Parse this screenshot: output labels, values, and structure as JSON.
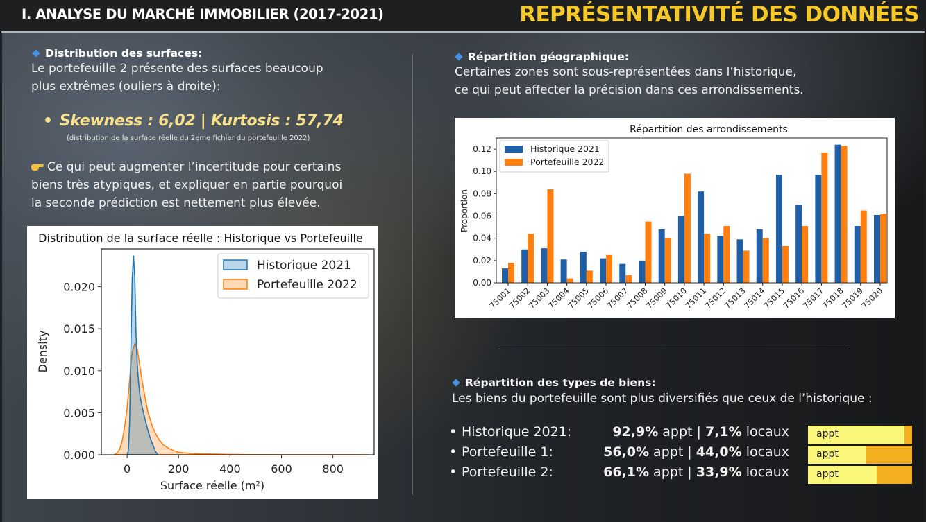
{
  "header": {
    "section_title": "I. ANALYSE DU MARCHÉ IMMOBILIER (2017-2021)",
    "main_title": "REPRÉSENTATIVITÉ DES DONNÉES"
  },
  "surfaces": {
    "heading": "Distribution des surfaces:",
    "text_line1": "Le portefeuille 2 présente des surfaces beaucoup",
    "text_line2": "plus extrêmes (ouliers à droite):",
    "metrics_bullet": "•",
    "metrics": "Skewness : 6,02 | Kurtosis : 57,74",
    "metrics_note": "(distribution de la surface réelle du 2eme fichier du portefeuille 2022)",
    "note_line1": "Ce qui peut augmenter l’incertitude pour certains",
    "note_line2": "biens très atypiques, et expliquer en partie pourquoi",
    "note_line3": "la seconde prédiction est nettement plus élevée."
  },
  "geo": {
    "heading": "Répartition géographique:",
    "text_line1": "Certaines zones sont sous-représentées dans l’historique,",
    "text_line2": "ce qui peut affecter la précision dans ces arrondissements."
  },
  "types": {
    "heading": "Répartition des types de biens:",
    "text": "Les biens du portefeuille sont plus diversifiés que ceux de l’historique :",
    "rows": [
      {
        "label": "Historique 2021:",
        "appt_pct": "92,9%",
        "appt_word": " appt | ",
        "locaux_pct": "7,1%",
        "locaux_word": " locaux",
        "appt_share": 92.9,
        "bar_label": "appt"
      },
      {
        "label": "Portefeuille 1:",
        "appt_pct": "56,0%",
        "appt_word": " appt | ",
        "locaux_pct": "44,0%",
        "locaux_word": " locaux",
        "appt_share": 56.0,
        "bar_label": "appt"
      },
      {
        "label": "Portefeuille 2:",
        "appt_pct": "66,1%",
        "appt_word": " appt | ",
        "locaux_pct": "33,9%",
        "locaux_word": " locaux",
        "appt_share": 66.1,
        "bar_label": "appt"
      }
    ],
    "colors": {
      "appt": "#fbf77b",
      "locaux": "#f5b021"
    }
  },
  "chart_data": [
    {
      "type": "area",
      "title": "Distribution de la surface réelle : Historique vs Portefeuille",
      "xlabel": "Surface réelle (m²)",
      "ylabel": "Density",
      "xlim": [
        -100,
        960
      ],
      "ylim": [
        0,
        0.0245
      ],
      "xticks": [
        0,
        200,
        400,
        600,
        800
      ],
      "yticks": [
        "0.000",
        "0.005",
        "0.010",
        "0.015",
        "0.020"
      ],
      "ytick_values": [
        0,
        0.005,
        0.01,
        0.015,
        0.02
      ],
      "legend": "top-right",
      "series": [
        {
          "name": "Historique 2021",
          "color": "#1f77b4",
          "x": [
            0,
            5,
            10,
            15,
            20,
            25,
            30,
            35,
            40,
            45,
            50,
            60,
            70,
            80,
            90,
            100,
            110,
            120
          ],
          "y": [
            0,
            0.0005,
            0.004,
            0.013,
            0.021,
            0.0237,
            0.021,
            0.014,
            0.0105,
            0.0085,
            0.007,
            0.0055,
            0.0042,
            0.003,
            0.002,
            0.0012,
            0.0004,
            0
          ]
        },
        {
          "name": "Portefeuille 2022",
          "color": "#ff7f0e",
          "x": [
            -50,
            -40,
            -30,
            -20,
            -10,
            0,
            10,
            20,
            30,
            35,
            40,
            50,
            60,
            70,
            80,
            100,
            120,
            140,
            160,
            180,
            200,
            250,
            300,
            350,
            400,
            500,
            600,
            700,
            800,
            940
          ],
          "y": [
            0,
            0.0002,
            0.0006,
            0.0015,
            0.0032,
            0.0055,
            0.009,
            0.0122,
            0.0132,
            0.013,
            0.0125,
            0.0105,
            0.0085,
            0.0068,
            0.0052,
            0.0032,
            0.002,
            0.0012,
            0.0008,
            0.0005,
            0.0003,
            0.00015,
            0.0001,
            8e-05,
            4e-05,
            2e-05,
            1e-05,
            1e-05,
            1e-05,
            0
          ]
        }
      ]
    },
    {
      "type": "bar",
      "title": "Répartition des arrondissements",
      "xlabel": "",
      "ylabel": "Proportion",
      "ylim": [
        0,
        0.13
      ],
      "yticks": [
        "0.00",
        "0.02",
        "0.04",
        "0.06",
        "0.08",
        "0.10",
        "0.12"
      ],
      "ytick_values": [
        0,
        0.02,
        0.04,
        0.06,
        0.08,
        0.1,
        0.12
      ],
      "legend": "top-left",
      "categories": [
        "75001",
        "75002",
        "75003",
        "75004",
        "75005",
        "75006",
        "75007",
        "75008",
        "75009",
        "75010",
        "75011",
        "75012",
        "75013",
        "75014",
        "75015",
        "75016",
        "75017",
        "75018",
        "75019",
        "75020"
      ],
      "series": [
        {
          "name": "Historique 2021",
          "color": "#1f5fa8",
          "values": [
            0.013,
            0.03,
            0.031,
            0.021,
            0.028,
            0.022,
            0.017,
            0.02,
            0.048,
            0.06,
            0.082,
            0.042,
            0.039,
            0.048,
            0.097,
            0.07,
            0.097,
            0.124,
            0.051,
            0.061
          ]
        },
        {
          "name": "Portefeuille 2022",
          "color": "#ff7f0e",
          "values": [
            0.018,
            0.044,
            0.084,
            0.004,
            0.011,
            0.025,
            0.007,
            0.055,
            0.04,
            0.098,
            0.044,
            0.051,
            0.029,
            0.04,
            0.033,
            0.051,
            0.117,
            0.123,
            0.065,
            0.062
          ]
        }
      ]
    }
  ]
}
